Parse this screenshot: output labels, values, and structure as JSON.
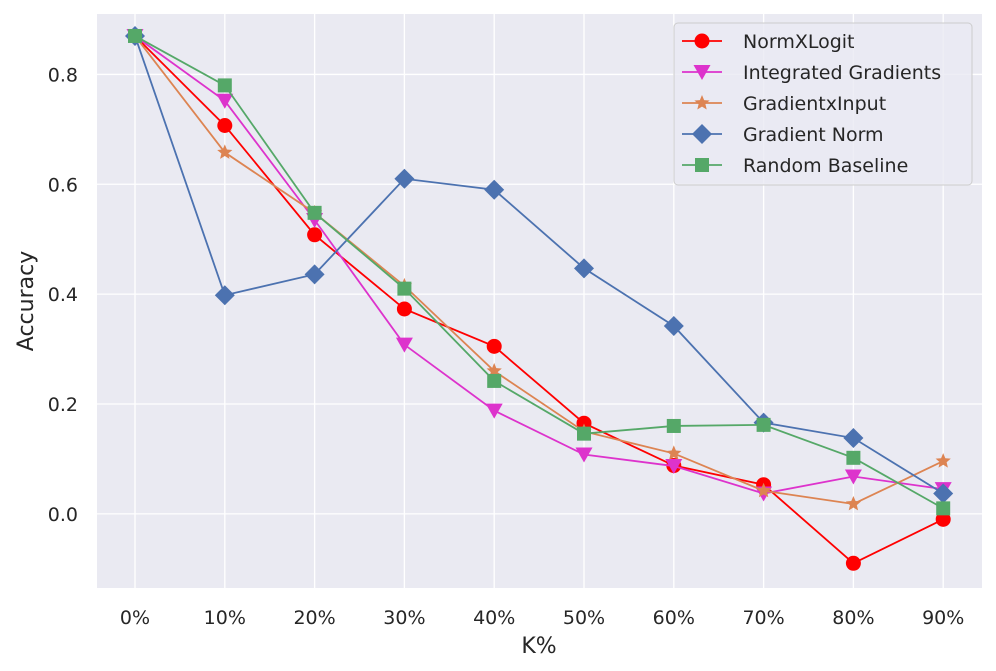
{
  "chart_data": {
    "type": "line",
    "title": "",
    "xlabel": "K%",
    "ylabel": "Accuracy",
    "categories": [
      "0%",
      "10%",
      "20%",
      "30%",
      "40%",
      "50%",
      "60%",
      "70%",
      "80%",
      "90%"
    ],
    "ylim": [
      -0.135,
      0.91
    ],
    "yticks": [
      0.0,
      0.2,
      0.4,
      0.6,
      0.8
    ],
    "ytick_labels": [
      "0.0",
      "0.2",
      "0.4",
      "0.6",
      "0.8"
    ],
    "grid": true,
    "legend_position": "top-right",
    "series": [
      {
        "name": "NormXLogit",
        "color": "#ff0000",
        "marker": "circle",
        "values": [
          0.87,
          0.707,
          0.508,
          0.373,
          0.305,
          0.165,
          0.088,
          0.053,
          -0.09,
          -0.01
        ]
      },
      {
        "name": "Integrated Gradients",
        "color": "#dd33cc",
        "marker": "triangle-down",
        "values": [
          0.87,
          0.752,
          0.535,
          0.308,
          0.188,
          0.108,
          0.087,
          0.037,
          0.068,
          0.045
        ]
      },
      {
        "name": "GradientxInput",
        "color": "#dd8452",
        "marker": "star",
        "values": [
          0.87,
          0.658,
          0.548,
          0.415,
          0.26,
          0.15,
          0.11,
          0.042,
          0.018,
          0.096
        ]
      },
      {
        "name": "Gradient Norm",
        "color": "#4c72b0",
        "marker": "diamond",
        "values": [
          0.87,
          0.398,
          0.436,
          0.61,
          0.59,
          0.447,
          0.342,
          0.166,
          0.138,
          0.037
        ]
      },
      {
        "name": "Random Baseline",
        "color": "#55a868",
        "marker": "square",
        "values": [
          0.87,
          0.78,
          0.548,
          0.41,
          0.242,
          0.146,
          0.16,
          0.162,
          0.102,
          0.01
        ]
      }
    ]
  }
}
